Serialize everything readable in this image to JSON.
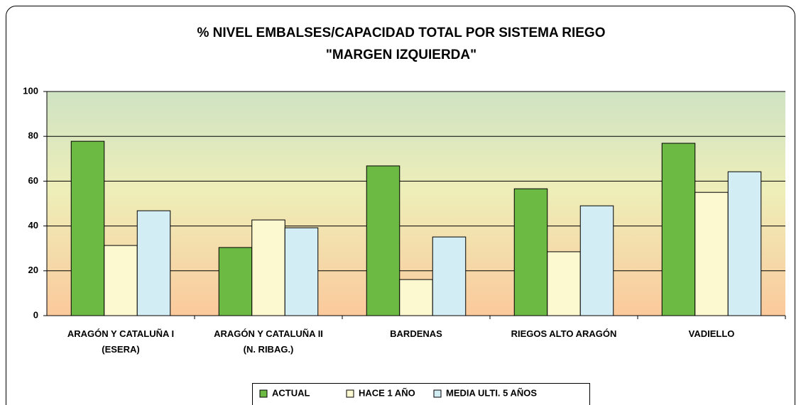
{
  "chart_data": {
    "type": "bar",
    "title": [
      "% NIVEL EMBALSES/CAPACIDAD TOTAL POR SISTEMA  RIEGO",
      "\"MARGEN IZQUIERDA\""
    ],
    "categories": [
      "ARAGÓN Y CATALUÑA I\n(ESERA)",
      "ARAGÓN Y CATALUÑA II\n(N. RIBAG.)",
      "BARDENAS",
      "RIEGOS ALTO ARAGÓN",
      "VADIELLO"
    ],
    "series": [
      {
        "name": "ACTUAL",
        "color": "#6cb944",
        "values": [
          77.8,
          30.4,
          66.8,
          56.6,
          76.9
        ]
      },
      {
        "name": "HACE 1 AÑO",
        "color": "#fcf9d0",
        "values": [
          31.3,
          42.7,
          16.1,
          28.5,
          55.0
        ]
      },
      {
        "name": "MEDIA  ULTI. 5 AÑOS",
        "color": "#d3edf4",
        "values": [
          46.8,
          39.2,
          35.1,
          49.0,
          64.2
        ]
      }
    ],
    "ylim": [
      0,
      100
    ],
    "yticks": [
      0,
      20,
      40,
      60,
      80,
      100
    ],
    "grid": true,
    "legend": "bottom"
  }
}
